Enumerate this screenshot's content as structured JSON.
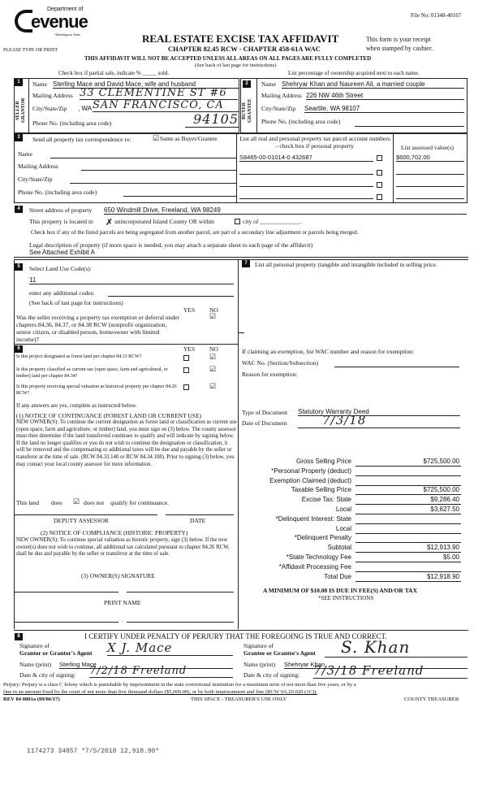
{
  "header": {
    "logo_top": "Department of",
    "logo_main": "evenue",
    "logo_sub": "Washington State",
    "please": "PLEASE TYPE OR PRINT",
    "file_no": "File No: 01348-40167",
    "title": "REAL ESTATE EXCISE TAX AFFIDAVIT",
    "chapter": "CHAPTER 82.45 RCW - CHAPTER 458-61A WAC",
    "receipt1": "This form is your receipt",
    "receipt2": "when stamped by cashier.",
    "warning": "THIS AFFIDAVIT WILL NOT BE ACCEPTED UNLESS ALL AREAS ON ALL PAGES ARE FULLY COMPLETED",
    "see_back": "(See back of last page for instructions)",
    "partial": "Check box if partial sale, indicate % _____ sold.",
    "ownership": "List percentage of ownership acquired next to each name."
  },
  "s1": {
    "num": "1",
    "side": "SELLER GRANTOR",
    "name_label": "Name",
    "name": "Sterling Mace and David Mace, wife and husband",
    "addr_label": "Mailing Address",
    "addr": "33 CLEMENTINE ST #6",
    "city_label": "City/State/Zip",
    "city_typed": ", WA",
    "city": "SAN FRANCISCO, CA",
    "phone_label": "Phone No. (including area code)",
    "zip": "94105"
  },
  "s2": {
    "num": "2",
    "side": "BUYER GRANTEE",
    "name_label": "Name",
    "name": "Shehryar Khan and Naureen Ali, a married couple",
    "addr_label": "Mailing Address",
    "addr": "226 NW 46th Street",
    "city_label": "City/State/Zip",
    "city": "Seartile, WA 98107",
    "phone_label": "Phone No. (including area code)"
  },
  "s3": {
    "num": "3",
    "send": "Send all property tax correspondence to:",
    "same": "Same as Buyer/Grantee",
    "name": "Name",
    "addr": "Mailing Address",
    "city": "City/State/Zip",
    "phone": "Phone No. (including area code)",
    "parcel_head": "List all real and personal property tax parcel account numbers - check box if personal property",
    "assessed_head": "List assessed value(s)",
    "parcel": "S8465-00-01014-0   432687",
    "assessed": "$600,702.00"
  },
  "s4": {
    "num": "4",
    "street_label": "Street address of property",
    "street": "650 Windmill Drive, Freeland, WA 98249",
    "located": "This property is located in",
    "unincorp": "unincorporated Island County OR within",
    "city_of": "city of _____________.",
    "segregated": "Check box if any of the listed parcels are being segregated from another parcel, are part of a secondary line adjustment or parcels being merged.",
    "legal_label": "Legal description of property (if more space is needed, you may attach a separate sheet to each page of the affidavit)",
    "legal": "See Attached Exhibit A"
  },
  "s5": {
    "num": "5",
    "select": "Select Land Use Code(s):",
    "code": "11",
    "additional": "enter any additional codes:",
    "see_back": "(See back of last page for instructions)",
    "yes": "YES",
    "no": "NO",
    "q": "Was the seller receiving a property tax exemption or deferral under chapters 84.36, 84.37, or 84.38 RCW (nonprofit organization, senior citizen, or disabled person, homeowner with limited income)?"
  },
  "s6": {
    "num": "6",
    "yes": "YES",
    "no": "NO",
    "q1": "Is this project designated as forest land per chapter 84.33 RCW?",
    "q2": "Is this property classified as current use (open space, farm and agricultural, or timber) land per chapter 84.34?",
    "q3": "Is this property receiving special valuation as historical property per chapter 84.26 RCW?",
    "if_yes": "If any answers are yes, complete as instructed below.",
    "n1_title": "(1) NOTICE OF CONTINUANCE (FOREST LAND OR CURRENT USE)",
    "n1_body": "NEW OWNER(S): To continue the current designation as forest land or classification as current use (open space, farm and agriculture, or timber) land, you must sign on (3) below. The county assessor must then determine if the land transferred continues to qualify and will indicate by signing below. If the land no longer qualifies or you do not wish to continue the designation or classification, it will be removed and the compensating or additional taxes will be due and payable by the seller or transferor at the time of sale. (RCW 84.33.140 or RCW 84.34.108). Prior to signing (3) below, you may contact your local county assessor for more information.",
    "land": "This land",
    "does": "does",
    "does_not": "does not",
    "qualify": "qualify for continuance.",
    "deputy": "DEPUTY ASSESSOR",
    "date": "DATE",
    "n2_title": "(2) NOTICE OF COMPLIANCE (HISTORIC PROPERTY)",
    "n2_body": "NEW OWNER(S): To continue special valuation as historic property, sign (3) below. If the new owner(s) does not wish to continue, all additional tax calculated pursuant to chapter 84.26 RCW, shall be due and payable by the seller or transferor at the time of sale.",
    "n3": "(3) OWNER(S) SIGNATURE",
    "print_name": "PRINT NAME"
  },
  "s7": {
    "num": "7",
    "personal": "List all personal property (tangible and intangible included in selling price.",
    "exempt": "If claiming an exemption, list WAC number and reason for exemption:",
    "wac": "WAC No. (Section/Subsection)",
    "reason": "Reason for exemption:",
    "doc_type_label": "Type of Document",
    "doc_type": "Statutory Warranty Deed",
    "doc_date_label": "Date of Document",
    "doc_date": "7/3/18",
    "fees": [
      {
        "label": "Gross Selling Price",
        "value": "$725,500.00"
      },
      {
        "label": "*Personal Property (deduct)",
        "value": ""
      },
      {
        "label": "Exemption Claimed (deduct)",
        "value": ""
      },
      {
        "label": "Taxable Selling Price",
        "value": "$725,500.00"
      },
      {
        "label": "Excise Tax:  State",
        "value": "$9,286.40"
      },
      {
        "label": "Local",
        "value": "$3,627.50"
      },
      {
        "label": "*Delinquent Interest:  State",
        "value": ""
      },
      {
        "label": "Local",
        "value": ""
      },
      {
        "label": "*Delinquent Penalty",
        "value": ""
      },
      {
        "label": "Subtotal",
        "value": "$12,913.90"
      },
      {
        "label": "*State Technology Fee",
        "value": "$5.00"
      },
      {
        "label": "*Affidavit Processing Fee",
        "value": ""
      },
      {
        "label": "Total Due",
        "value": "$12,918.90"
      }
    ],
    "minimum": "A MINIMUM OF $10.00 IS DUE IN FEE(S) AND/OR TAX",
    "see_instr": "*SEE INSTRUCTIONS"
  },
  "s8": {
    "num": "8",
    "certify": "I CERTIFY UNDER PENALTY OF PERJURY THAT THE FOREGOING IS TRUE AND CORRECT.",
    "sig_of": "Signature of",
    "grantor_agent": "Grantor or Grantor's Agent",
    "grantee_agent": "Grantee or Grantee's Agent",
    "name_print": "Name (print)",
    "grantor_name": "Sterling Mace",
    "grantee_name": "Shehryar Khan",
    "date_city": "Date & city of signing:",
    "grantor_date": "7/2/18  Freeland",
    "grantee_date": "7/3/18  Freeland",
    "grantor_sig": "X  J. Mace",
    "grantee_sig": "S. Khan"
  },
  "footer": {
    "perjury1": "Perjury: Perjury is a class C felony which is punishable by imprisonment in the state correctional institution for a maximum term of not more than five years, or by a",
    "perjury2": "fine in an amount fixed by the court of not more than five thousand dollars ($5,000.00), or by both imprisonment and fine (RCW 9A.20.020 (1C)).",
    "rev": "REV 84 0001a (09/06/17)",
    "treasurer_space": "THIS SPACE - TREASURER'S USE ONLY",
    "county": "COUNTY TREASURER",
    "stamp": "1174273 34857 *7/5/2018 12,918.90*"
  },
  "checks": {
    "checked": "☑",
    "cross": "✗"
  }
}
